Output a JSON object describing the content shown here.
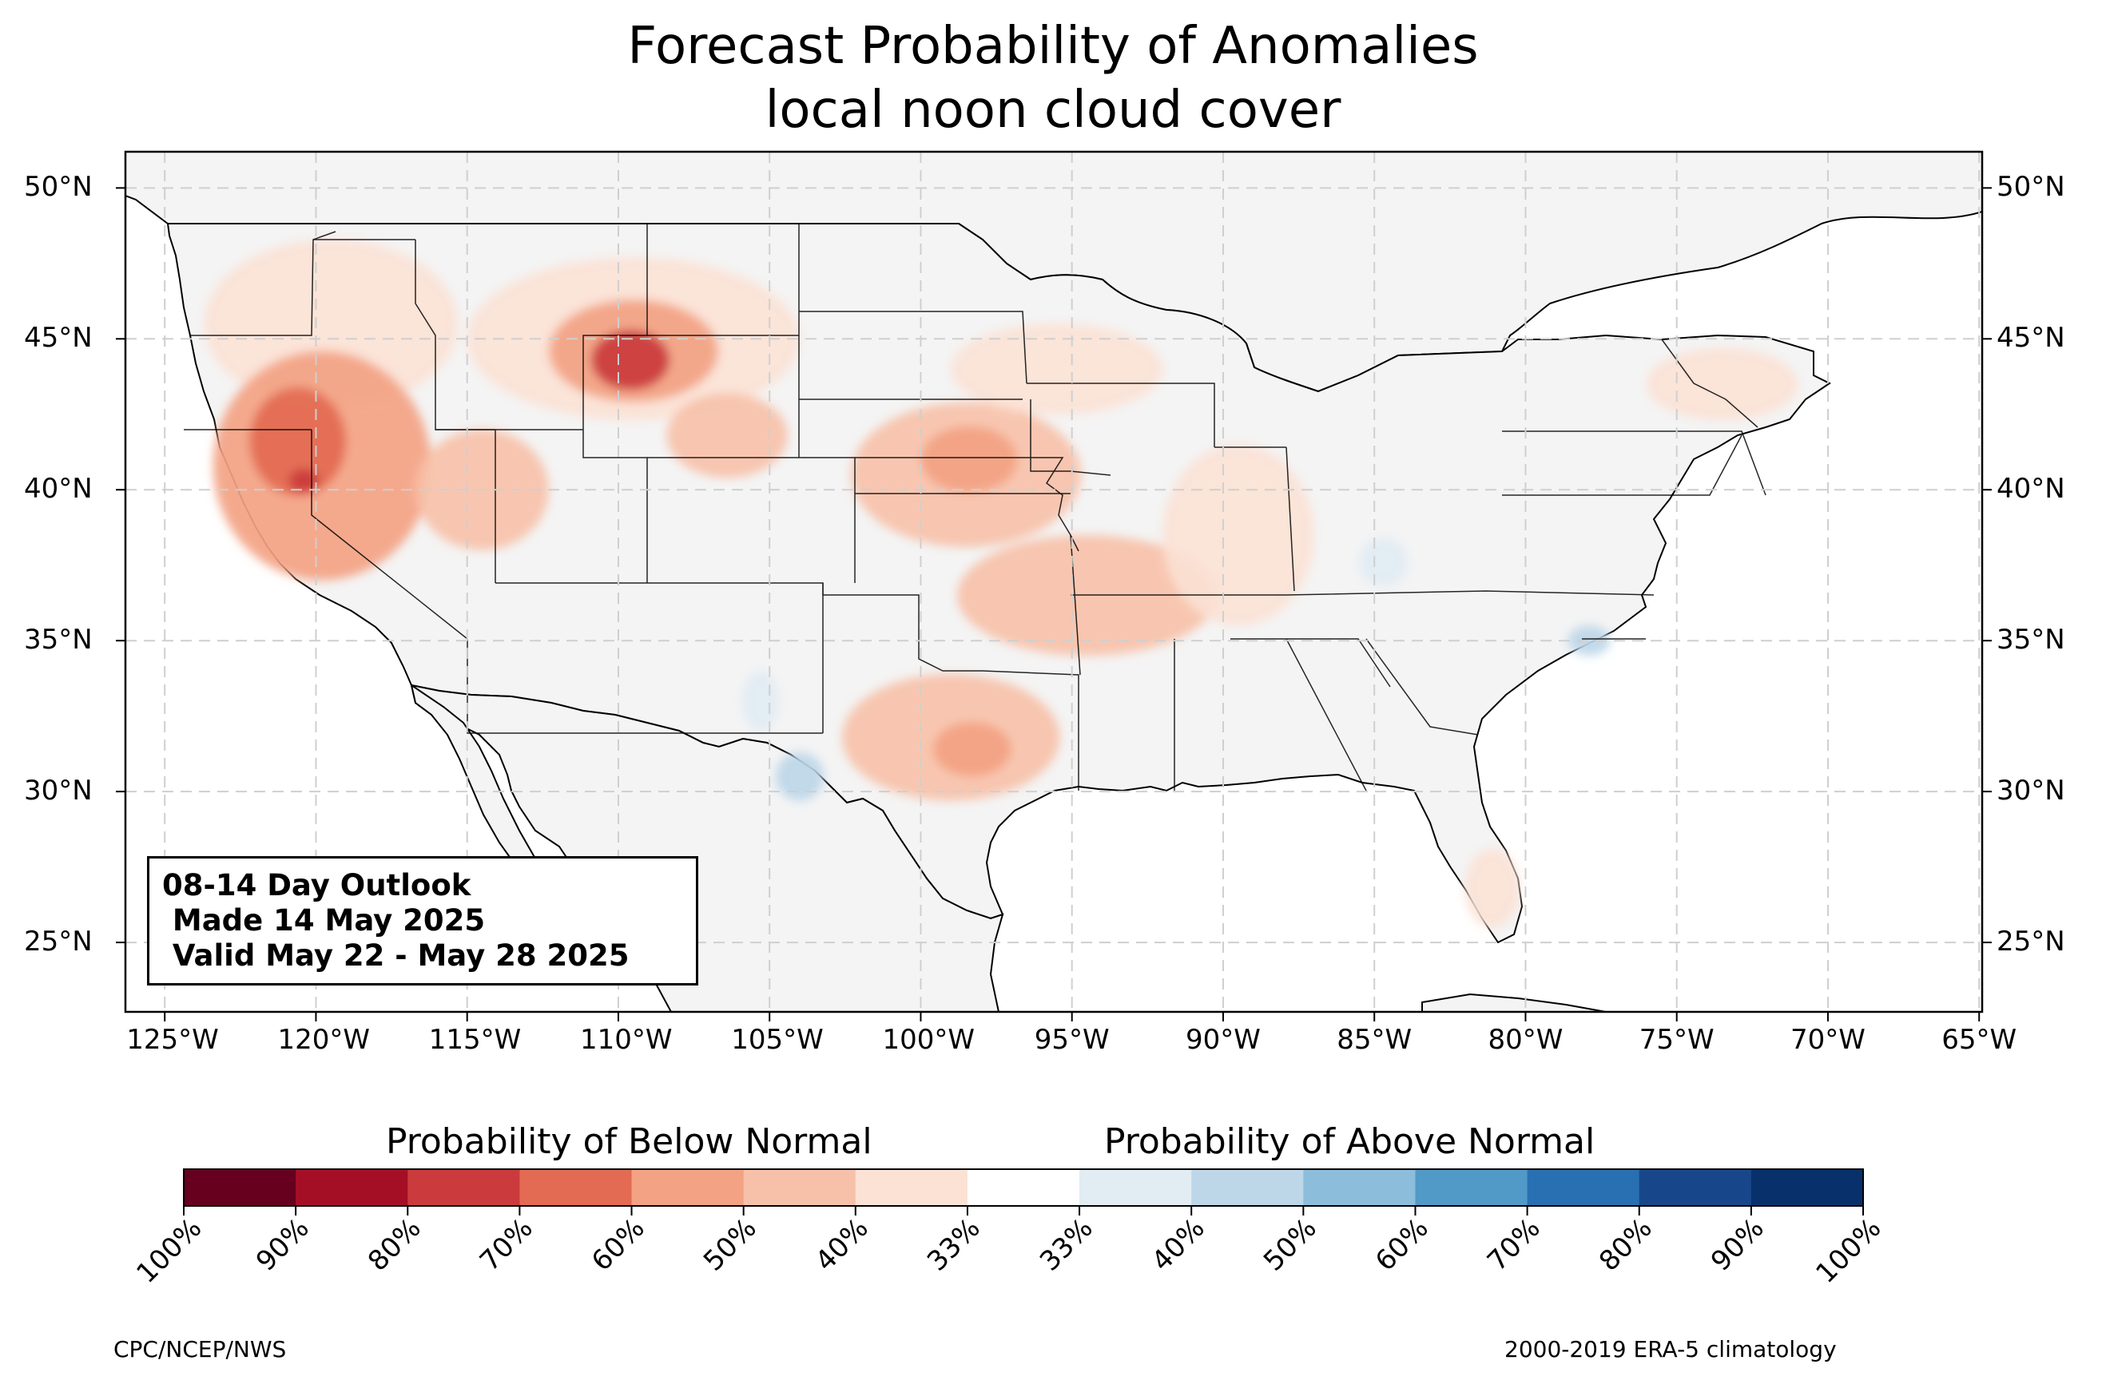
{
  "title": {
    "line1": "Forecast Probability of Anomalies",
    "line2": "local noon cloud cover"
  },
  "map": {
    "lon_range": [
      -126.3,
      -64.9
    ],
    "lat_range": [
      22.7,
      51.2
    ],
    "lon_ticks": [
      {
        "value": -125,
        "label": "125°W"
      },
      {
        "value": -120,
        "label": "120°W"
      },
      {
        "value": -115,
        "label": "115°W"
      },
      {
        "value": -110,
        "label": "110°W"
      },
      {
        "value": -105,
        "label": "105°W"
      },
      {
        "value": -100,
        "label": "100°W"
      },
      {
        "value": -95,
        "label": "95°W"
      },
      {
        "value": -90,
        "label": "90°W"
      },
      {
        "value": -85,
        "label": "85°W"
      },
      {
        "value": -80,
        "label": "80°W"
      },
      {
        "value": -75,
        "label": "75°W"
      },
      {
        "value": -70,
        "label": "70°W"
      },
      {
        "value": -65,
        "label": "65°W"
      }
    ],
    "lat_ticks": [
      {
        "value": 50,
        "label": "50°N"
      },
      {
        "value": 45,
        "label": "45°N"
      },
      {
        "value": 40,
        "label": "40°N"
      },
      {
        "value": 35,
        "label": "35°N"
      },
      {
        "value": 30,
        "label": "30°N"
      },
      {
        "value": 25,
        "label": "25°N"
      }
    ],
    "gridlines": true,
    "land_color": "#f4f4f4",
    "ocean_color": "#ffffff"
  },
  "anomaly_regions": [
    {
      "name": "pacific-northwest",
      "lon": -119.5,
      "lat": 45.5,
      "rlon": 4.2,
      "rlat": 2.8,
      "category": "below-33"
    },
    {
      "name": "northern-california-nevada",
      "lon": -119.8,
      "lat": 40.8,
      "rlon": 3.6,
      "rlat": 3.8,
      "category": "below-50"
    },
    {
      "name": "northern-california-core",
      "lon": -120.6,
      "lat": 41.6,
      "rlon": 1.6,
      "rlat": 1.8,
      "category": "below-60"
    },
    {
      "name": "northern-california-peak",
      "lon": -120.4,
      "lat": 40.3,
      "rlon": 0.5,
      "rlat": 0.4,
      "category": "below-70"
    },
    {
      "name": "great-basin",
      "lon": -114.5,
      "lat": 40.0,
      "rlon": 2.2,
      "rlat": 2.0,
      "category": "below-40"
    },
    {
      "name": "montana-wyoming",
      "lon": -109.5,
      "lat": 45.0,
      "rlon": 5.5,
      "rlat": 2.7,
      "category": "below-33"
    },
    {
      "name": "montana-wyoming-core",
      "lon": -109.5,
      "lat": 44.6,
      "rlon": 2.8,
      "rlat": 1.7,
      "category": "below-50"
    },
    {
      "name": "yellowstone-peak",
      "lon": -109.6,
      "lat": 44.3,
      "rlon": 1.3,
      "rlat": 1.0,
      "category": "below-70"
    },
    {
      "name": "eastern-colorado-wyoming",
      "lon": -106.4,
      "lat": 41.8,
      "rlon": 2.0,
      "rlat": 1.4,
      "category": "below-40"
    },
    {
      "name": "central-plains",
      "lon": -98.5,
      "lat": 40.5,
      "rlon": 3.8,
      "rlat": 2.4,
      "category": "below-40"
    },
    {
      "name": "nebraska-core",
      "lon": -98.4,
      "lat": 41.0,
      "rlon": 1.6,
      "rlat": 1.1,
      "category": "below-50"
    },
    {
      "name": "oklahoma-arkansas",
      "lon": -94.5,
      "lat": 36.5,
      "rlon": 4.3,
      "rlat": 2.0,
      "category": "below-40"
    },
    {
      "name": "mississippi-valley",
      "lon": -89.5,
      "lat": 38.5,
      "rlon": 2.5,
      "rlat": 3.0,
      "category": "below-33"
    },
    {
      "name": "central-texas",
      "lon": -99.0,
      "lat": 31.8,
      "rlon": 3.6,
      "rlat": 2.1,
      "category": "below-40"
    },
    {
      "name": "central-texas-core",
      "lon": -98.3,
      "lat": 31.4,
      "rlon": 1.3,
      "rlat": 0.9,
      "category": "below-50"
    },
    {
      "name": "upper-midwest",
      "lon": -95.5,
      "lat": 44.0,
      "rlon": 3.5,
      "rlat": 1.5,
      "category": "below-33"
    },
    {
      "name": "south-florida",
      "lon": -81.1,
      "lat": 26.8,
      "rlon": 0.9,
      "rlat": 1.3,
      "category": "below-33"
    },
    {
      "name": "new-england",
      "lon": -73.5,
      "lat": 43.5,
      "rlon": 2.5,
      "rlat": 1.2,
      "category": "below-33"
    },
    {
      "name": "kentucky-ohio-valley",
      "lon": -84.7,
      "lat": 37.6,
      "rlon": 0.8,
      "rlat": 0.8,
      "category": "above-33"
    },
    {
      "name": "new-mexico",
      "lon": -105.3,
      "lat": 33.0,
      "rlon": 0.6,
      "rlat": 1.0,
      "category": "above-33"
    },
    {
      "name": "west-texas",
      "lon": -104.0,
      "lat": 30.5,
      "rlon": 0.8,
      "rlat": 0.8,
      "category": "above-40"
    },
    {
      "name": "north-carolina-coast",
      "lon": -77.9,
      "lat": 35.0,
      "rlon": 0.7,
      "rlat": 0.5,
      "category": "above-40"
    }
  ],
  "outlook": {
    "line1": "08-14 Day Outlook",
    "line2": " Made 14 May 2025",
    "line3": " Valid May 22 - May 28 2025"
  },
  "colorbar": {
    "below_heading": "Probability of Below Normal",
    "above_heading": "Probability of Above Normal",
    "colors": [
      "#67001f",
      "#a50f25",
      "#cb3a3d",
      "#e36a53",
      "#f3a283",
      "#f7c1a9",
      "#fbe2d5",
      "#ffffff",
      "#e1ecf3",
      "#bdd6e8",
      "#8cbddb",
      "#5199c7",
      "#2870b2",
      "#17478a",
      "#08306b"
    ],
    "labels": [
      "100%",
      "90%",
      "80%",
      "70%",
      "60%",
      "50%",
      "40%",
      "33%",
      "33%",
      "40%",
      "50%",
      "60%",
      "70%",
      "80%",
      "90%",
      "100%"
    ]
  },
  "categories": {
    "below-70": "#cb3a3d",
    "below-60": "#e36a53",
    "below-50": "#f3a283",
    "below-40": "#f7c1a9",
    "below-33": "#fbe2d5",
    "above-33": "#e1ecf3",
    "above-40": "#bdd6e8"
  },
  "credits": {
    "left": "CPC/NCEP/NWS",
    "right": "2000-2019 ERA-5 climatology"
  }
}
